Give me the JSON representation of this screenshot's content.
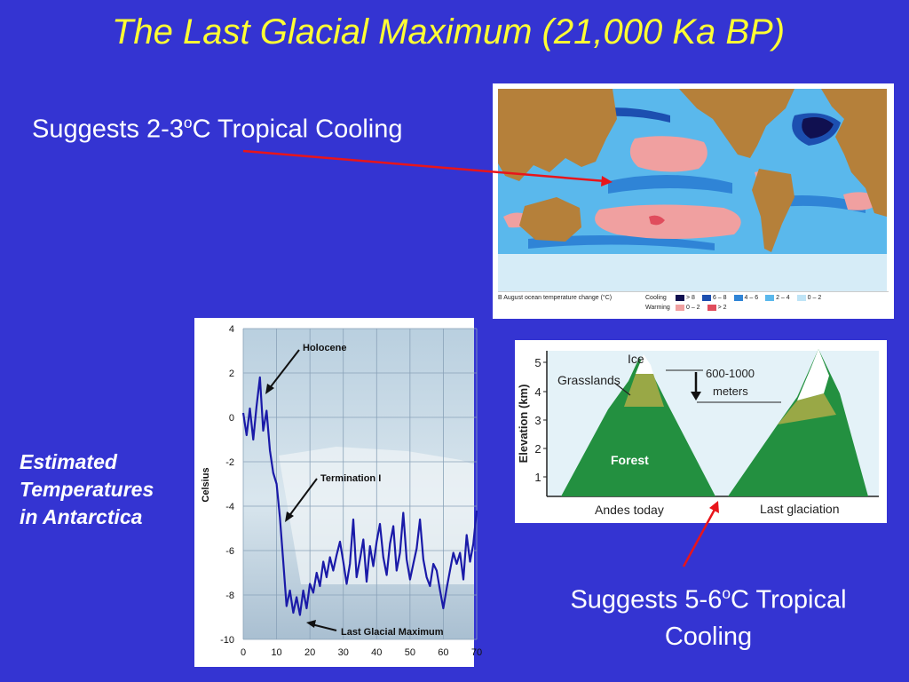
{
  "title": "The Last Glacial Maximum (21,000 Ka BP)",
  "caption_top": {
    "pre": "Suggests 2-3",
    "sup": "o",
    "post": "C Tropical Cooling"
  },
  "caption_bottom": {
    "pre": "Suggests 5-6",
    "sup": "o",
    "post": "C Tropical Cooling"
  },
  "side_label": [
    "Estimated",
    "Temperatures",
    "in Antarctica"
  ],
  "map_figure": {
    "caption": "B  August ocean temperature change (°C)",
    "cooling_label": "Cooling",
    "warming_label": "Warming",
    "cooling_legend": [
      {
        "label": "> 8",
        "color": "#101050"
      },
      {
        "label": "6 – 8",
        "color": "#1c4fb0"
      },
      {
        "label": "4 – 6",
        "color": "#2f84d6"
      },
      {
        "label": "2 – 4",
        "color": "#5ab8ec"
      },
      {
        "label": "0 – 2",
        "color": "#bfe4f6"
      }
    ],
    "warming_legend": [
      {
        "label": "0 – 2",
        "color": "#f0a0a0"
      },
      {
        "label": "> 2",
        "color": "#e04d5d"
      }
    ]
  },
  "antarctica_chart": {
    "ylabel": "Celsius",
    "xlim": [
      0,
      70
    ],
    "ylim": [
      -10,
      4
    ],
    "x_ticks": [
      0,
      10,
      20,
      30,
      40,
      50,
      60,
      70
    ],
    "y_ticks": [
      4,
      2,
      0,
      -2,
      -4,
      -6,
      -8,
      -10
    ],
    "annotations": [
      "Holocene",
      "Termination I",
      "Last Glacial Maximum"
    ]
  },
  "chart_data": {
    "type": "line",
    "ylabel": "Celsius",
    "xlim": [
      0,
      70
    ],
    "ylim": [
      -10,
      4
    ],
    "grid": true,
    "annotations": [
      "Holocene",
      "Termination I",
      "Last Glacial Maximum"
    ],
    "series": [
      {
        "color": "#1a1aa8",
        "x": [
          0,
          1,
          2,
          3,
          4,
          5,
          6,
          7,
          8,
          9,
          10,
          11,
          12,
          13,
          14,
          15,
          16,
          17,
          18,
          19,
          20,
          21,
          22,
          23,
          24,
          25,
          26,
          27,
          28,
          29,
          30,
          31,
          32,
          33,
          34,
          35,
          36,
          37,
          38,
          39,
          40,
          41,
          42,
          43,
          44,
          45,
          46,
          47,
          48,
          49,
          50,
          51,
          52,
          53,
          54,
          55,
          56,
          57,
          58,
          59,
          60,
          61,
          62,
          63,
          64,
          65,
          66,
          67,
          68,
          69,
          70
        ],
        "y": [
          0.2,
          -0.8,
          0.4,
          -1,
          0.5,
          1.8,
          -0.6,
          0.3,
          -1.5,
          -2.5,
          -3,
          -4.5,
          -6.5,
          -8.5,
          -7.8,
          -8.8,
          -8.1,
          -8.9,
          -7.8,
          -8.6,
          -7.5,
          -7.9,
          -7,
          -7.6,
          -6.5,
          -7.2,
          -6.3,
          -6.9,
          -6.2,
          -5.6,
          -6.5,
          -7.5,
          -6.6,
          -4.6,
          -7.2,
          -6.4,
          -5.5,
          -7.4,
          -5.8,
          -6.7,
          -5.6,
          -4.8,
          -6.3,
          -7.1,
          -5.7,
          -4.9,
          -6.9,
          -6.1,
          -4.3,
          -6.4,
          -7.3,
          -6.6,
          -5.9,
          -4.6,
          -6.4,
          -7.2,
          -7.6,
          -6.6,
          -6.9,
          -7.8,
          -8.6,
          -7.7,
          -6.9,
          -6.1,
          -6.6,
          -6.1,
          -7.3,
          -5.3,
          -6.5,
          -5.7,
          -4.2
        ]
      }
    ]
  },
  "andes_figure": {
    "ylabel": "Elevation (km)",
    "y_ticks": [
      "5",
      "4",
      "3",
      "2",
      "1"
    ],
    "ice_label": "Ice",
    "grasslands_label": "Grasslands",
    "forest_label": "Forest",
    "shift_label_1": "600-1000",
    "shift_label_2": "meters",
    "left_label": "Andes today",
    "right_label": "Last glaciation"
  }
}
